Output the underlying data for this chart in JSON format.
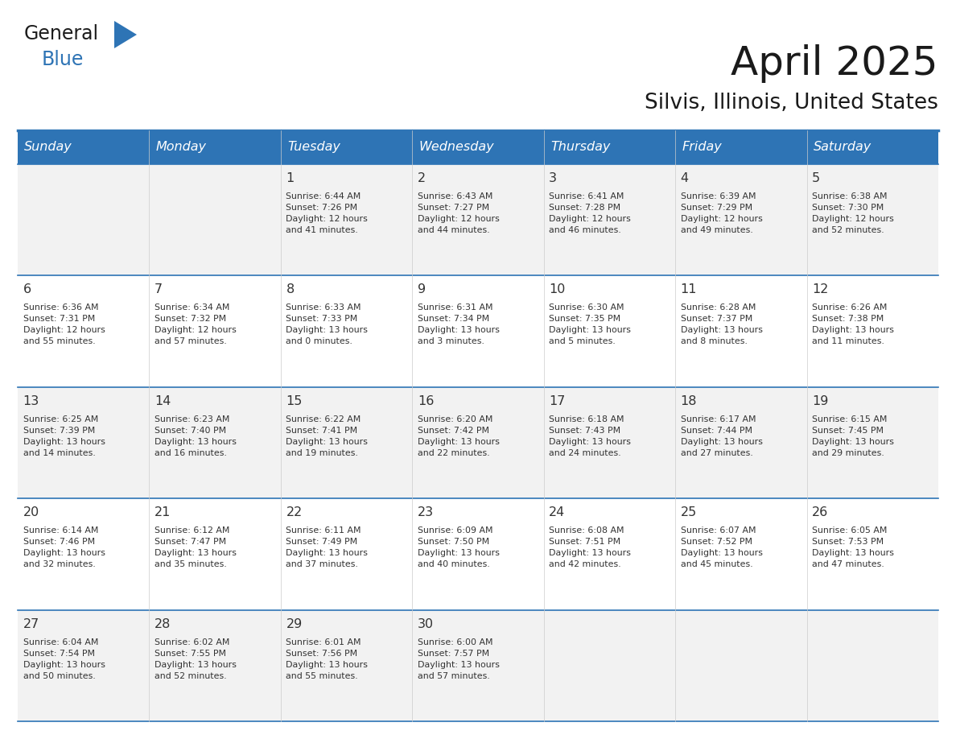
{
  "title": "April 2025",
  "subtitle": "Silvis, Illinois, United States",
  "header_bg_color": "#2E74B5",
  "header_text_color": "#FFFFFF",
  "day_headers": [
    "Sunday",
    "Monday",
    "Tuesday",
    "Wednesday",
    "Thursday",
    "Friday",
    "Saturday"
  ],
  "text_color": "#333333",
  "title_color": "#1a1a1a",
  "line_color": "#2E74B5",
  "cell_bg_odd": "#F2F2F2",
  "cell_bg_even": "#FFFFFF",
  "weeks": [
    [
      {
        "day": "",
        "info": ""
      },
      {
        "day": "",
        "info": ""
      },
      {
        "day": "1",
        "info": "Sunrise: 6:44 AM\nSunset: 7:26 PM\nDaylight: 12 hours\nand 41 minutes."
      },
      {
        "day": "2",
        "info": "Sunrise: 6:43 AM\nSunset: 7:27 PM\nDaylight: 12 hours\nand 44 minutes."
      },
      {
        "day": "3",
        "info": "Sunrise: 6:41 AM\nSunset: 7:28 PM\nDaylight: 12 hours\nand 46 minutes."
      },
      {
        "day": "4",
        "info": "Sunrise: 6:39 AM\nSunset: 7:29 PM\nDaylight: 12 hours\nand 49 minutes."
      },
      {
        "day": "5",
        "info": "Sunrise: 6:38 AM\nSunset: 7:30 PM\nDaylight: 12 hours\nand 52 minutes."
      }
    ],
    [
      {
        "day": "6",
        "info": "Sunrise: 6:36 AM\nSunset: 7:31 PM\nDaylight: 12 hours\nand 55 minutes."
      },
      {
        "day": "7",
        "info": "Sunrise: 6:34 AM\nSunset: 7:32 PM\nDaylight: 12 hours\nand 57 minutes."
      },
      {
        "day": "8",
        "info": "Sunrise: 6:33 AM\nSunset: 7:33 PM\nDaylight: 13 hours\nand 0 minutes."
      },
      {
        "day": "9",
        "info": "Sunrise: 6:31 AM\nSunset: 7:34 PM\nDaylight: 13 hours\nand 3 minutes."
      },
      {
        "day": "10",
        "info": "Sunrise: 6:30 AM\nSunset: 7:35 PM\nDaylight: 13 hours\nand 5 minutes."
      },
      {
        "day": "11",
        "info": "Sunrise: 6:28 AM\nSunset: 7:37 PM\nDaylight: 13 hours\nand 8 minutes."
      },
      {
        "day": "12",
        "info": "Sunrise: 6:26 AM\nSunset: 7:38 PM\nDaylight: 13 hours\nand 11 minutes."
      }
    ],
    [
      {
        "day": "13",
        "info": "Sunrise: 6:25 AM\nSunset: 7:39 PM\nDaylight: 13 hours\nand 14 minutes."
      },
      {
        "day": "14",
        "info": "Sunrise: 6:23 AM\nSunset: 7:40 PM\nDaylight: 13 hours\nand 16 minutes."
      },
      {
        "day": "15",
        "info": "Sunrise: 6:22 AM\nSunset: 7:41 PM\nDaylight: 13 hours\nand 19 minutes."
      },
      {
        "day": "16",
        "info": "Sunrise: 6:20 AM\nSunset: 7:42 PM\nDaylight: 13 hours\nand 22 minutes."
      },
      {
        "day": "17",
        "info": "Sunrise: 6:18 AM\nSunset: 7:43 PM\nDaylight: 13 hours\nand 24 minutes."
      },
      {
        "day": "18",
        "info": "Sunrise: 6:17 AM\nSunset: 7:44 PM\nDaylight: 13 hours\nand 27 minutes."
      },
      {
        "day": "19",
        "info": "Sunrise: 6:15 AM\nSunset: 7:45 PM\nDaylight: 13 hours\nand 29 minutes."
      }
    ],
    [
      {
        "day": "20",
        "info": "Sunrise: 6:14 AM\nSunset: 7:46 PM\nDaylight: 13 hours\nand 32 minutes."
      },
      {
        "day": "21",
        "info": "Sunrise: 6:12 AM\nSunset: 7:47 PM\nDaylight: 13 hours\nand 35 minutes."
      },
      {
        "day": "22",
        "info": "Sunrise: 6:11 AM\nSunset: 7:49 PM\nDaylight: 13 hours\nand 37 minutes."
      },
      {
        "day": "23",
        "info": "Sunrise: 6:09 AM\nSunset: 7:50 PM\nDaylight: 13 hours\nand 40 minutes."
      },
      {
        "day": "24",
        "info": "Sunrise: 6:08 AM\nSunset: 7:51 PM\nDaylight: 13 hours\nand 42 minutes."
      },
      {
        "day": "25",
        "info": "Sunrise: 6:07 AM\nSunset: 7:52 PM\nDaylight: 13 hours\nand 45 minutes."
      },
      {
        "day": "26",
        "info": "Sunrise: 6:05 AM\nSunset: 7:53 PM\nDaylight: 13 hours\nand 47 minutes."
      }
    ],
    [
      {
        "day": "27",
        "info": "Sunrise: 6:04 AM\nSunset: 7:54 PM\nDaylight: 13 hours\nand 50 minutes."
      },
      {
        "day": "28",
        "info": "Sunrise: 6:02 AM\nSunset: 7:55 PM\nDaylight: 13 hours\nand 52 minutes."
      },
      {
        "day": "29",
        "info": "Sunrise: 6:01 AM\nSunset: 7:56 PM\nDaylight: 13 hours\nand 55 minutes."
      },
      {
        "day": "30",
        "info": "Sunrise: 6:00 AM\nSunset: 7:57 PM\nDaylight: 13 hours\nand 57 minutes."
      },
      {
        "day": "",
        "info": ""
      },
      {
        "day": "",
        "info": ""
      },
      {
        "day": "",
        "info": ""
      }
    ]
  ]
}
